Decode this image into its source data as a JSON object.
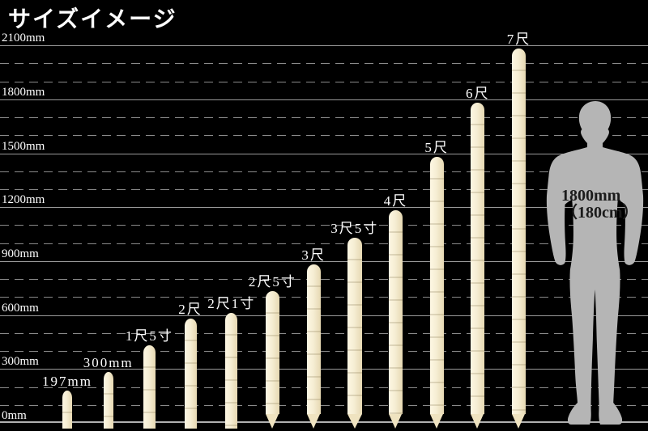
{
  "title": "サイズイメージ",
  "chart_data": {
    "type": "bar",
    "title": "サイズイメージ",
    "unit": "mm",
    "ylim": [
      0,
      2100
    ],
    "ytick_interval_mm": 300,
    "minor_grid_interval_mm": 100,
    "ytick_labels": [
      "0mm",
      "300mm",
      "600mm",
      "900mm",
      "1200mm",
      "1500mm",
      "1800mm",
      "2100mm"
    ],
    "grid": "solid labeled line every 300mm, dashed minor line every 100mm",
    "legend_position": "none",
    "bars": [
      {
        "label": "197mm",
        "height_mm": 197,
        "tip": "flat"
      },
      {
        "label": "300mm",
        "height_mm": 300,
        "tip": "flat"
      },
      {
        "label": "1尺5寸",
        "height_mm": 450,
        "tip": "flat"
      },
      {
        "label": "2尺",
        "height_mm": 600,
        "tip": "flat"
      },
      {
        "label": "2尺1寸",
        "height_mm": 630,
        "tip": "flat"
      },
      {
        "label": "2尺5寸",
        "height_mm": 750,
        "tip": "pointed"
      },
      {
        "label": "3尺",
        "height_mm": 900,
        "tip": "pointed"
      },
      {
        "label": "3尺5寸",
        "height_mm": 1050,
        "tip": "pointed"
      },
      {
        "label": "4尺",
        "height_mm": 1200,
        "tip": "pointed"
      },
      {
        "label": "5尺",
        "height_mm": 1500,
        "tip": "pointed"
      },
      {
        "label": "6尺",
        "height_mm": 1800,
        "tip": "pointed"
      },
      {
        "label": "7尺",
        "height_mm": 2100,
        "tip": "pointed"
      }
    ],
    "reference_figure": {
      "type": "human-silhouette",
      "height_mm": 1800,
      "label_line1": "1800mm",
      "label_line2": "（180cm）"
    }
  },
  "colors": {
    "background": "#000000",
    "text": "#ffffff",
    "grid_solid": "#9b9b9b",
    "grid_dashed": "#8a8a8a",
    "baseline": "#b0b0b0",
    "stake_light": "#fdf7e3",
    "stake_mid": "#f3e9cb",
    "stake_dark": "#e6d8b2",
    "silhouette": "#b5b5b5",
    "figure_label": "#1b1b1b"
  }
}
